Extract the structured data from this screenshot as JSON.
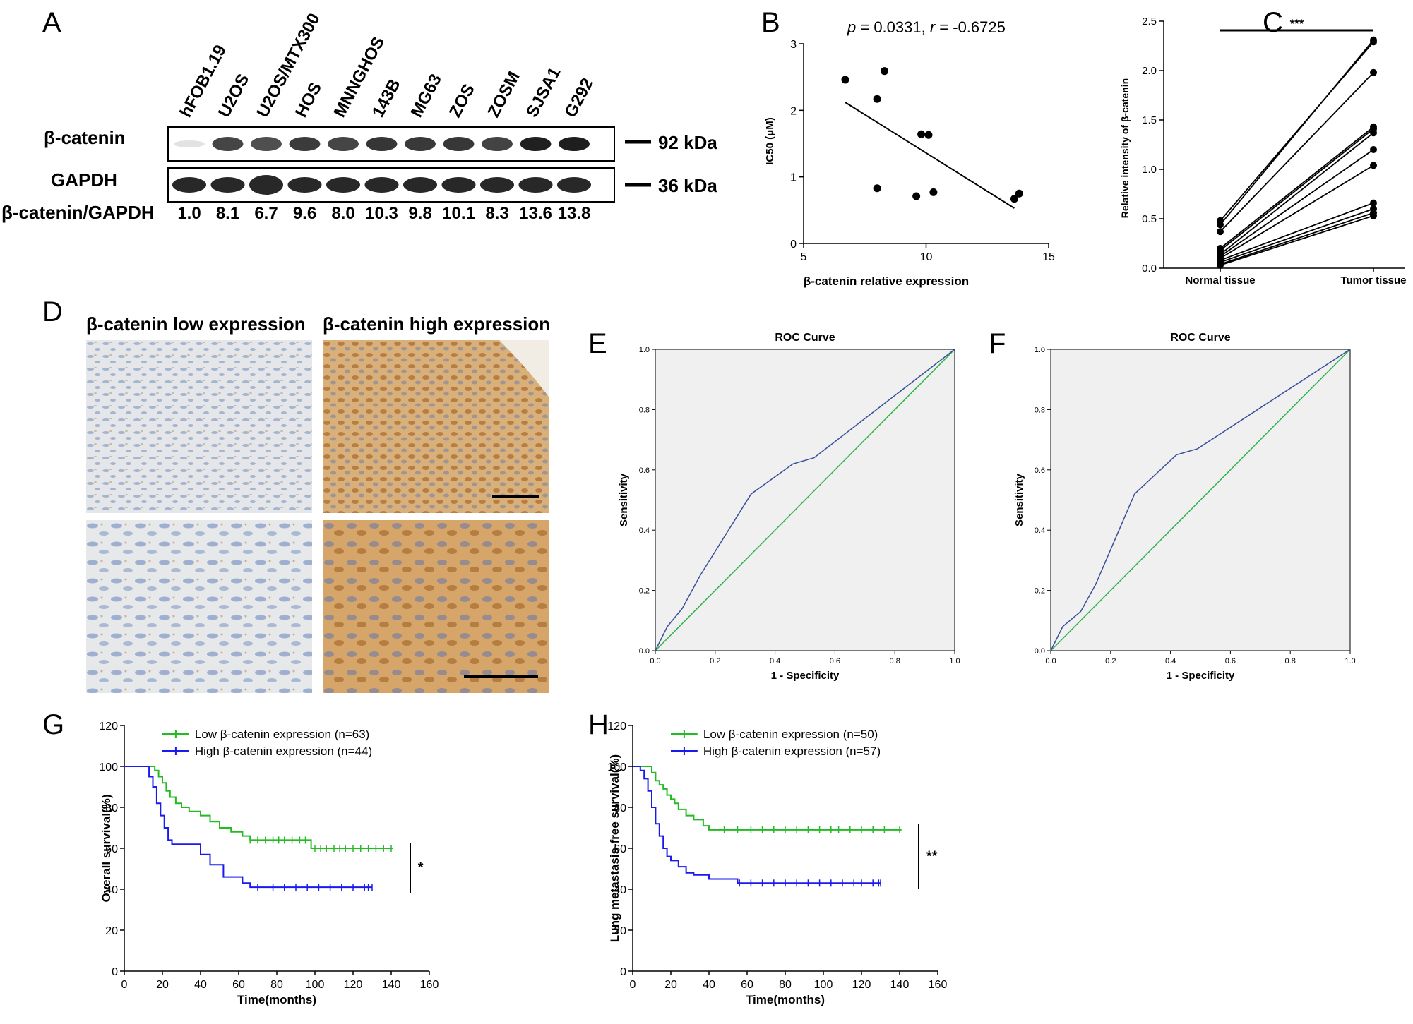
{
  "panels": {
    "A": {
      "label": "A",
      "lanes": [
        "hFOB1.19",
        "U2OS",
        "U2OS/MTX300",
        "HOS",
        "MNNGHOS",
        "143B",
        "MG63",
        "ZOS",
        "ZOSM",
        "SJSA1",
        "G292"
      ],
      "rows": [
        {
          "name": "β-catenin",
          "marker": "92 kDa"
        },
        {
          "name": "GAPDH",
          "marker": "36 kDa"
        }
      ],
      "ratio_label": "β-catenin/GAPDH",
      "ratios": [
        "1.0",
        "8.1",
        "6.7",
        "9.6",
        "8.0",
        "10.3",
        "9.8",
        "10.1",
        "8.3",
        "13.6",
        "13.8"
      ]
    },
    "B": {
      "label": "B",
      "annotation_p": "p",
      "annotation_p_value": " = 0.0331, ",
      "annotation_r": "r",
      "annotation_r_value": " = -0.6725",
      "xlabel": "β-catenin relative expression",
      "ylabel": "IC50 (μM)",
      "xticks": [
        "5",
        "10",
        "15"
      ],
      "yticks": [
        "0",
        "1",
        "2",
        "3"
      ]
    },
    "C": {
      "label": "C",
      "ylabel": "Relative intensity of β-catenin",
      "significance": "***",
      "categories": [
        "Normal tissue",
        "Tumor tissue"
      ],
      "yticks": [
        "0.0",
        "0.5",
        "1.0",
        "1.5",
        "2.0",
        "2.5"
      ]
    },
    "D": {
      "label": "D",
      "low_title": "β-catenin low expression",
      "high_title": "β-catenin high expression"
    },
    "E": {
      "label": "E",
      "title": "ROC Curve",
      "xlabel": "1 - Specificity",
      "ylabel": "Sensitivity",
      "ticks": [
        "0.0",
        "0.2",
        "0.4",
        "0.6",
        "0.8",
        "1.0"
      ]
    },
    "F": {
      "label": "F",
      "title": "ROC Curve",
      "xlabel": "1 - Specificity",
      "ylabel": "Sensitivity",
      "ticks": [
        "0.0",
        "0.2",
        "0.4",
        "0.6",
        "0.8",
        "1.0"
      ]
    },
    "G": {
      "label": "G",
      "xlabel": "Time(months)",
      "ylabel": "Overall survival(%)",
      "xticks": [
        "0",
        "20",
        "40",
        "60",
        "80",
        "100",
        "120",
        "140",
        "160"
      ],
      "yticks": [
        "0",
        "20",
        "40",
        "60",
        "80",
        "100",
        "120"
      ],
      "legend": [
        "Low β-catenin expression   (n=63)",
        "High β-catenin expression (n=44)"
      ],
      "significance": "*"
    },
    "H": {
      "label": "H",
      "xlabel": "Time(months)",
      "ylabel": "Lung metastasis-free survival(%)",
      "xticks": [
        "0",
        "20",
        "40",
        "60",
        "80",
        "100",
        "120",
        "140",
        "160"
      ],
      "yticks": [
        "0",
        "20",
        "40",
        "60",
        "80",
        "100",
        "120"
      ],
      "legend": [
        "Low β-catenin expression   (n=50)",
        "High β-catenin expression (n=57)"
      ],
      "significance": "**"
    }
  },
  "colors": {
    "low": "#22bb22",
    "high": "#1a1aee",
    "roc_curve": "#3a4f9a",
    "roc_reference": "#2db34a",
    "roc_bg": "#f0f0f0",
    "ihc_low": "#dfe2e6",
    "ihc_high": "#c9955a"
  },
  "chart_data": [
    {
      "panel": "B",
      "type": "scatter",
      "xlabel": "β-catenin relative expression",
      "ylabel": "IC50 (μM)",
      "xlim": [
        5,
        15
      ],
      "ylim": [
        0,
        3
      ],
      "points": [
        [
          6.7,
          2.46
        ],
        [
          8.0,
          2.17
        ],
        [
          8.3,
          2.59
        ],
        [
          8.0,
          0.83
        ],
        [
          9.6,
          0.71
        ],
        [
          9.8,
          1.64
        ],
        [
          10.1,
          1.63
        ],
        [
          10.3,
          0.77
        ],
        [
          13.6,
          0.67
        ],
        [
          13.8,
          0.75
        ]
      ],
      "fit_line": [
        [
          6.7,
          2.12
        ],
        [
          13.6,
          0.53
        ]
      ]
    },
    {
      "panel": "C",
      "type": "line",
      "ylabel": "Relative intensity of β-catenin",
      "categories": [
        "Normal tissue",
        "Tumor tissue"
      ],
      "ylim": [
        0,
        2.5
      ],
      "pairs": [
        [
          0.48,
          2.29
        ],
        [
          0.44,
          2.31
        ],
        [
          0.37,
          1.98
        ],
        [
          0.2,
          1.43
        ],
        [
          0.18,
          1.41
        ],
        [
          0.14,
          1.37
        ],
        [
          0.12,
          1.2
        ],
        [
          0.1,
          1.04
        ],
        [
          0.08,
          0.66
        ],
        [
          0.06,
          0.6
        ],
        [
          0.04,
          0.56
        ],
        [
          0.03,
          0.53
        ]
      ]
    },
    {
      "panel": "E",
      "type": "line",
      "title": "ROC Curve",
      "xlabel": "1 - Specificity",
      "ylabel": "Sensitivity",
      "xlim": [
        0,
        1
      ],
      "ylim": [
        0,
        1
      ],
      "series": [
        {
          "x": [
            0,
            0.04,
            0.09,
            0.15,
            0.32,
            0.46,
            0.53,
            1.0
          ],
          "y": [
            0,
            0.08,
            0.14,
            0.25,
            0.52,
            0.62,
            0.64,
            1.0
          ]
        },
        {
          "x": [
            0,
            1
          ],
          "y": [
            0,
            1
          ]
        }
      ]
    },
    {
      "panel": "F",
      "type": "line",
      "title": "ROC Curve",
      "xlabel": "1 - Specificity",
      "ylabel": "Sensitivity",
      "xlim": [
        0,
        1
      ],
      "ylim": [
        0,
        1
      ],
      "series": [
        {
          "x": [
            0,
            0.04,
            0.1,
            0.15,
            0.28,
            0.42,
            0.49,
            1.0
          ],
          "y": [
            0,
            0.08,
            0.13,
            0.22,
            0.52,
            0.65,
            0.67,
            1.0
          ]
        },
        {
          "x": [
            0,
            1
          ],
          "y": [
            0,
            1
          ]
        }
      ]
    },
    {
      "panel": "G",
      "type": "line",
      "xlabel": "Time(months)",
      "ylabel": "Overall survival(%)",
      "xlim": [
        0,
        160
      ],
      "ylim": [
        0,
        120
      ],
      "series": [
        {
          "name": "Low β-catenin expression   (n=63)",
          "x": [
            0,
            14,
            16,
            18,
            20,
            22,
            24,
            27,
            30,
            34,
            40,
            45,
            50,
            56,
            62,
            66,
            72,
            98,
            141
          ],
          "y": [
            100,
            100,
            98,
            95,
            92,
            88,
            85,
            82,
            80,
            78,
            76,
            73,
            70,
            68,
            66,
            64,
            64,
            60,
            60
          ]
        },
        {
          "name": "High β-catenin expression (n=44)",
          "x": [
            0,
            10,
            13,
            15,
            17,
            19,
            21,
            23,
            25,
            30,
            40,
            45,
            52,
            56,
            62,
            66,
            130
          ],
          "y": [
            100,
            100,
            95,
            90,
            82,
            76,
            70,
            64,
            62,
            62,
            57,
            52,
            46,
            46,
            43,
            41,
            41
          ]
        }
      ],
      "censor_ticks": [
        {
          "series": 0,
          "x": [
            66,
            70,
            74,
            78,
            81,
            84,
            88,
            92,
            95,
            100,
            103,
            106,
            110,
            113,
            116,
            120,
            124,
            128,
            132,
            136,
            140
          ]
        },
        {
          "series": 1,
          "x": [
            70,
            78,
            84,
            90,
            96,
            102,
            108,
            114,
            120,
            126,
            128,
            130
          ]
        }
      ]
    },
    {
      "panel": "H",
      "type": "line",
      "xlabel": "Time(months)",
      "ylabel": "Lung metastasis-free survival(%)",
      "xlim": [
        0,
        160
      ],
      "ylim": [
        0,
        120
      ],
      "series": [
        {
          "name": "Low β-catenin expression   (n=50)",
          "x": [
            0,
            6,
            10,
            12,
            14,
            16,
            18,
            20,
            22,
            24,
            28,
            32,
            37,
            40,
            141
          ],
          "y": [
            100,
            100,
            97,
            93,
            91,
            89,
            86,
            84,
            82,
            79,
            76,
            74,
            71,
            69,
            69
          ]
        },
        {
          "name": "High β-catenin expression (n=57)",
          "x": [
            0,
            4,
            6,
            8,
            10,
            12,
            14,
            16,
            18,
            20,
            24,
            28,
            32,
            40,
            55,
            130
          ],
          "y": [
            100,
            98,
            94,
            88,
            80,
            72,
            66,
            60,
            56,
            54,
            51,
            48,
            47,
            45,
            43,
            43
          ]
        }
      ],
      "censor_ticks": [
        {
          "series": 0,
          "x": [
            48,
            55,
            62,
            68,
            74,
            80,
            86,
            92,
            98,
            104,
            108,
            114,
            120,
            126,
            132,
            140
          ]
        },
        {
          "series": 1,
          "x": [
            56,
            62,
            68,
            74,
            80,
            86,
            92,
            98,
            104,
            110,
            116,
            120,
            126,
            129,
            130
          ]
        }
      ]
    }
  ]
}
